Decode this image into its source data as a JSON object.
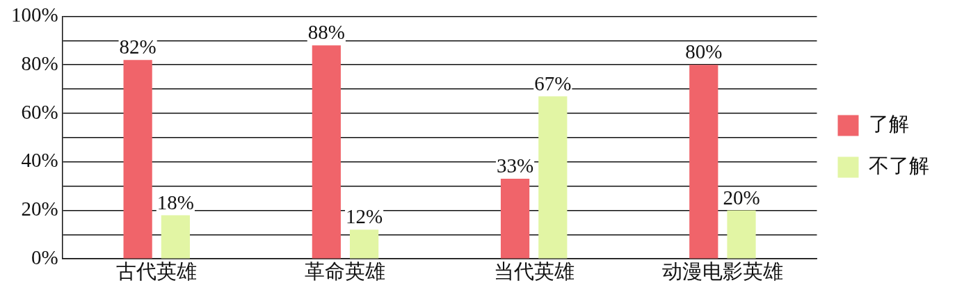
{
  "chart_data": {
    "type": "bar",
    "categories": [
      "古代英雄",
      "革命英雄",
      "当代英雄",
      "动漫电影英雄"
    ],
    "series": [
      {
        "name": "了解",
        "color": "#f0646a",
        "values": [
          82,
          88,
          33,
          80
        ],
        "value_labels": [
          "82%",
          "88%",
          "33%",
          "80%"
        ]
      },
      {
        "name": "不了解",
        "color": "#e2f5a4",
        "values": [
          18,
          12,
          67,
          20
        ],
        "value_labels": [
          "18%",
          "12%",
          "67%",
          "20%"
        ]
      }
    ],
    "ylim": [
      0,
      100
    ],
    "yticks": [
      {
        "value": 0,
        "label": "0%"
      },
      {
        "value": 10,
        "label": null
      },
      {
        "value": 20,
        "label": "20%"
      },
      {
        "value": 30,
        "label": null
      },
      {
        "value": 40,
        "label": "40%"
      },
      {
        "value": 50,
        "label": null
      },
      {
        "value": 60,
        "label": "60%"
      },
      {
        "value": 70,
        "label": null
      },
      {
        "value": 80,
        "label": "80%"
      },
      {
        "value": 90,
        "label": null
      },
      {
        "value": 100,
        "label": "100%"
      }
    ],
    "grid": "y",
    "legend": "right"
  }
}
